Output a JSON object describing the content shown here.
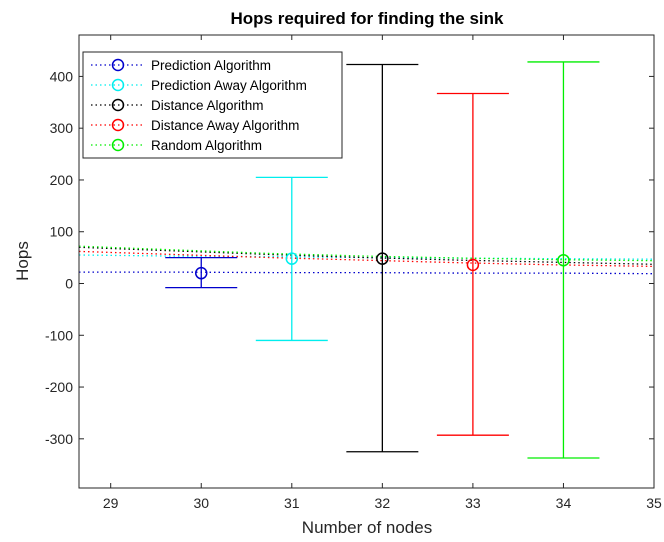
{
  "chart_data": {
    "type": "errorbar",
    "title": "Hops required for finding the sink",
    "xlabel": "Number of nodes",
    "ylabel": "Hops",
    "xlim": [
      28.65,
      35
    ],
    "ylim": [
      -395,
      480
    ],
    "xticks": [
      "29",
      "30",
      "31",
      "32",
      "33",
      "34",
      "35"
    ],
    "yticks": [
      "400",
      "300",
      "200",
      "100",
      "0",
      "-100",
      "-200",
      "-300"
    ],
    "grid": false,
    "legend_position": "top-left",
    "series": [
      {
        "name": "Prediction Algorithm",
        "color": "#0000cc",
        "x": 30,
        "mean": 20,
        "lower": -8,
        "upper": 50,
        "trend": [
          22,
          22,
          21,
          21,
          20,
          20,
          19
        ]
      },
      {
        "name": "Prediction Away Algorithm",
        "color": "#00eeee",
        "x": 31,
        "mean": 48,
        "lower": -110,
        "upper": 205,
        "trend": [
          55,
          53,
          52,
          50,
          49,
          48,
          47
        ]
      },
      {
        "name": "Distance Algorithm",
        "color": "#000000",
        "x": 32,
        "mean": 48,
        "lower": -325,
        "upper": 423,
        "trend": [
          70,
          63,
          56,
          50,
          45,
          41,
          37
        ]
      },
      {
        "name": "Distance Away Algorithm",
        "color": "#ff0000",
        "x": 33,
        "mean": 36,
        "lower": -293,
        "upper": 367,
        "trend": [
          62,
          56,
          50,
          45,
          40,
          36,
          33
        ]
      },
      {
        "name": "Random Algorithm",
        "color": "#00ee00",
        "x": 34,
        "mean": 45,
        "lower": -337,
        "upper": 428,
        "trend": [
          72,
          65,
          58,
          53,
          49,
          46,
          44
        ]
      }
    ]
  }
}
